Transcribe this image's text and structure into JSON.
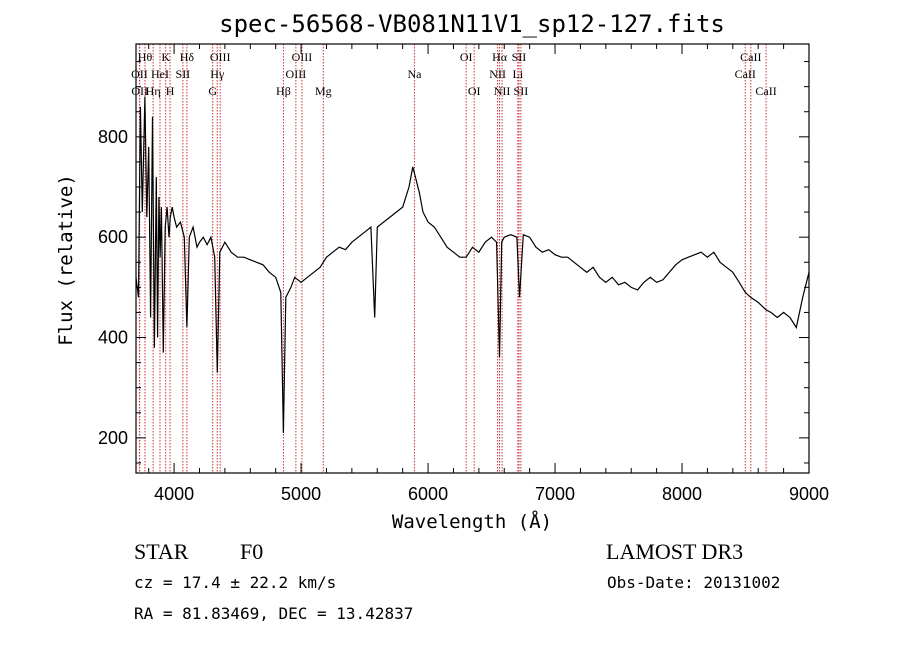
{
  "chart_data": {
    "type": "line",
    "title": "spec-56568-VB081N11V1_sp12-127.fits",
    "xlabel": "Wavelength (Å)",
    "ylabel": "Flux (relative)",
    "xlim": [
      3700,
      9000
    ],
    "ylim": [
      130,
      985
    ],
    "x_ticks": [
      4000,
      5000,
      6000,
      7000,
      8000,
      9000
    ],
    "y_ticks": [
      200,
      400,
      600,
      800
    ],
    "series": [
      {
        "name": "flux",
        "x": [
          3700,
          3720,
          3735,
          3750,
          3770,
          3785,
          3800,
          3815,
          3830,
          3845,
          3860,
          3870,
          3880,
          3890,
          3900,
          3915,
          3930,
          3945,
          3960,
          3970,
          3985,
          4000,
          4020,
          4050,
          4080,
          4101,
          4120,
          4150,
          4180,
          4200,
          4230,
          4260,
          4290,
          4320,
          4340,
          4360,
          4400,
          4450,
          4500,
          4550,
          4600,
          4650,
          4700,
          4750,
          4800,
          4840,
          4861,
          4880,
          4920,
          4950,
          5000,
          5050,
          5100,
          5150,
          5200,
          5250,
          5300,
          5350,
          5400,
          5450,
          5500,
          5550,
          5580,
          5600,
          5650,
          5700,
          5750,
          5800,
          5850,
          5880,
          5900,
          5930,
          5960,
          6000,
          6050,
          6100,
          6150,
          6200,
          6250,
          6300,
          6350,
          6400,
          6450,
          6500,
          6540,
          6563,
          6580,
          6600,
          6650,
          6700,
          6720,
          6750,
          6800,
          6850,
          6900,
          6950,
          7000,
          7050,
          7100,
          7150,
          7200,
          7250,
          7300,
          7350,
          7400,
          7450,
          7500,
          7550,
          7600,
          7650,
          7700,
          7750,
          7800,
          7850,
          7900,
          7950,
          8000,
          8050,
          8100,
          8150,
          8200,
          8250,
          8300,
          8350,
          8400,
          8450,
          8498,
          8542,
          8600,
          8662,
          8700,
          8750,
          8800,
          8850,
          8900,
          8950,
          9000
        ],
        "values": [
          520,
          480,
          860,
          650,
          880,
          640,
          780,
          440,
          840,
          380,
          720,
          400,
          680,
          560,
          660,
          370,
          620,
          660,
          600,
          640,
          660,
          640,
          620,
          630,
          600,
          420,
          600,
          620,
          580,
          590,
          600,
          585,
          600,
          560,
          330,
          570,
          590,
          570,
          560,
          560,
          555,
          550,
          545,
          530,
          520,
          490,
          210,
          480,
          500,
          520,
          510,
          520,
          530,
          540,
          560,
          570,
          580,
          575,
          590,
          600,
          610,
          620,
          440,
          620,
          630,
          640,
          650,
          660,
          700,
          740,
          720,
          690,
          650,
          630,
          620,
          600,
          580,
          570,
          560,
          560,
          580,
          570,
          590,
          600,
          590,
          360,
          590,
          600,
          605,
          600,
          480,
          605,
          600,
          580,
          570,
          575,
          565,
          560,
          560,
          550,
          540,
          530,
          540,
          520,
          510,
          520,
          505,
          510,
          500,
          495,
          510,
          520,
          510,
          515,
          530,
          545,
          555,
          560,
          565,
          570,
          560,
          570,
          550,
          540,
          530,
          510,
          490,
          480,
          470,
          455,
          450,
          440,
          450,
          440,
          420,
          480,
          530
        ]
      }
    ],
    "lines": [
      {
        "label": "OII",
        "x": 3727,
        "row": 2
      },
      {
        "label": "OII",
        "x": 3729,
        "row": 3
      },
      {
        "label": "Hθ",
        "x": 3771,
        "row": 1
      },
      {
        "label": "Hη",
        "x": 3835,
        "row": 3
      },
      {
        "label": "HeI",
        "x": 3889,
        "row": 2
      },
      {
        "label": "K",
        "x": 3934,
        "row": 1
      },
      {
        "label": "H",
        "x": 3968,
        "row": 3
      },
      {
        "label": "SII",
        "x": 4069,
        "row": 2
      },
      {
        "label": "Hδ",
        "x": 4101,
        "row": 1
      },
      {
        "label": "G",
        "x": 4304,
        "row": 3
      },
      {
        "label": "Hγ",
        "x": 4340,
        "row": 2
      },
      {
        "label": "OIII",
        "x": 4363,
        "row": 1
      },
      {
        "label": "Hβ",
        "x": 4861,
        "row": 3
      },
      {
        "label": "OIII",
        "x": 4959,
        "row": 2
      },
      {
        "label": "OIII",
        "x": 5007,
        "row": 1
      },
      {
        "label": "Mg",
        "x": 5175,
        "row": 3
      },
      {
        "label": "Na",
        "x": 5893,
        "row": 2
      },
      {
        "label": "OI",
        "x": 6300,
        "row": 1
      },
      {
        "label": "OI",
        "x": 6363,
        "row": 3
      },
      {
        "label": "NII",
        "x": 6548,
        "row": 2
      },
      {
        "label": "Hα",
        "x": 6563,
        "row": 1
      },
      {
        "label": "NII",
        "x": 6583,
        "row": 3
      },
      {
        "label": "Li",
        "x": 6707,
        "row": 2
      },
      {
        "label": "SII",
        "x": 6716,
        "row": 1
      },
      {
        "label": "SII",
        "x": 6731,
        "row": 3
      },
      {
        "label": "CaII",
        "x": 8498,
        "row": 2
      },
      {
        "label": "CaII",
        "x": 8542,
        "row": 1
      },
      {
        "label": "CaII",
        "x": 8662,
        "row": 3
      }
    ]
  },
  "info": {
    "object_type": "STAR",
    "subclass": "F0",
    "cz": "cz = 17.4 ± 22.2 km/s",
    "coords": "RA =  81.83469, DEC =  13.42837",
    "survey": "LAMOST DR3",
    "obs_date": "Obs-Date: 20131002"
  },
  "colors": {
    "line_marker": "#cc3333",
    "spectrum": "#000000",
    "axes": "#000000"
  }
}
